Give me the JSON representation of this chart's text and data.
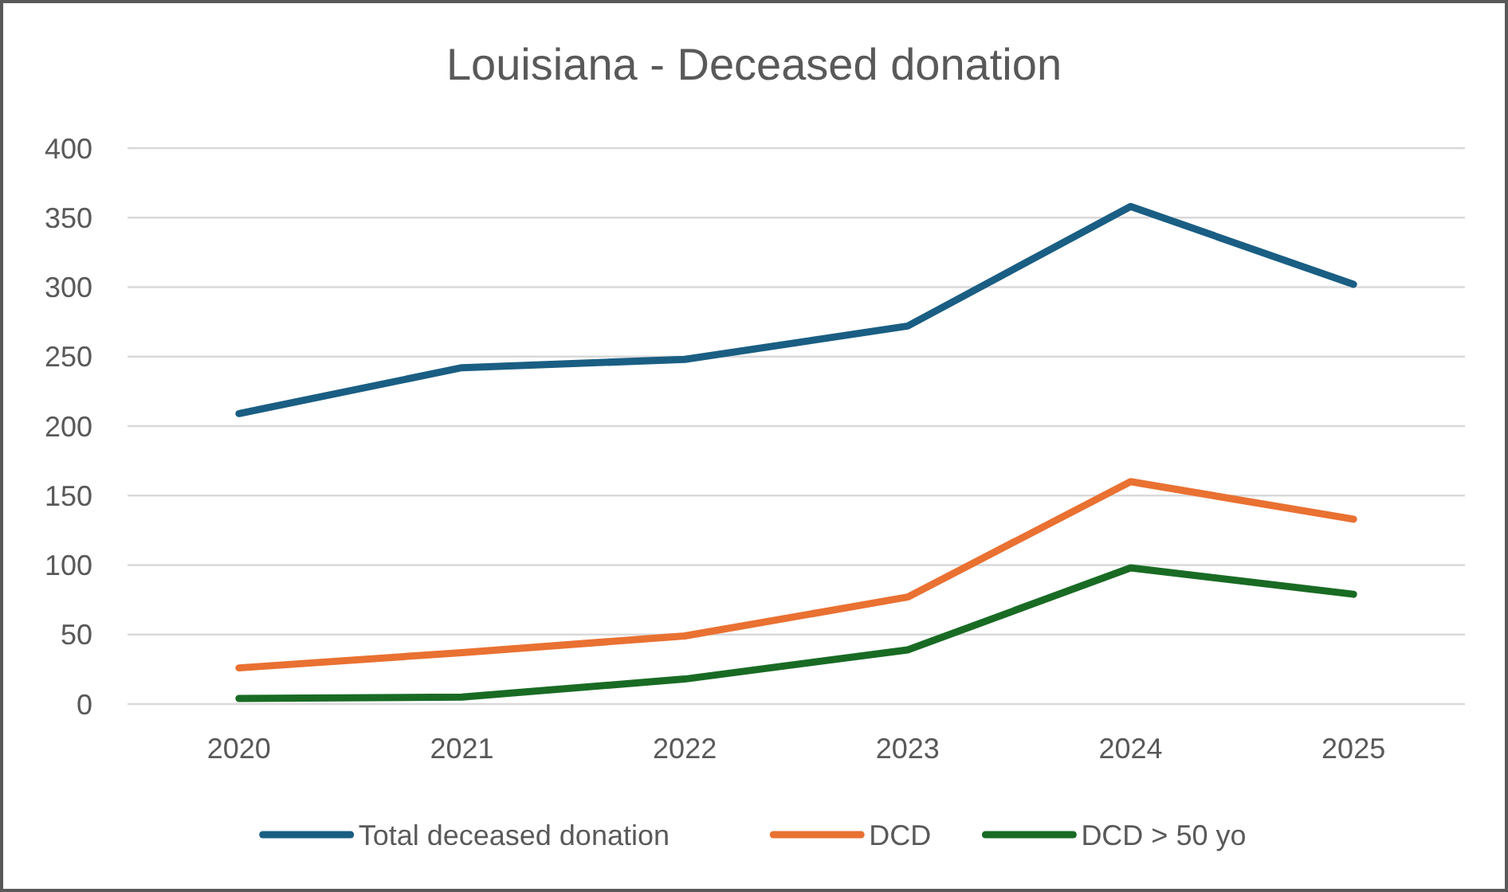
{
  "chart_data": {
    "type": "line",
    "title": "Louisiana - Deceased donation",
    "categories": [
      "2020",
      "2021",
      "2022",
      "2023",
      "2024",
      "2025"
    ],
    "series": [
      {
        "name": "Total deceased donation",
        "color": "#1a5e83",
        "values": [
          209,
          242,
          248,
          272,
          358,
          302
        ]
      },
      {
        "name": "DCD",
        "color": "#e97132",
        "values": [
          26,
          37,
          49,
          77,
          160,
          133
        ]
      },
      {
        "name": "DCD > 50 yo",
        "color": "#196b24",
        "values": [
          4,
          5,
          18,
          39,
          98,
          79
        ]
      }
    ],
    "ylim": [
      0,
      400
    ],
    "yticks": [
      0,
      50,
      100,
      150,
      200,
      250,
      300,
      350,
      400
    ],
    "grid": "y",
    "legend": "bottom",
    "marker": "none",
    "line_style": "solid"
  }
}
